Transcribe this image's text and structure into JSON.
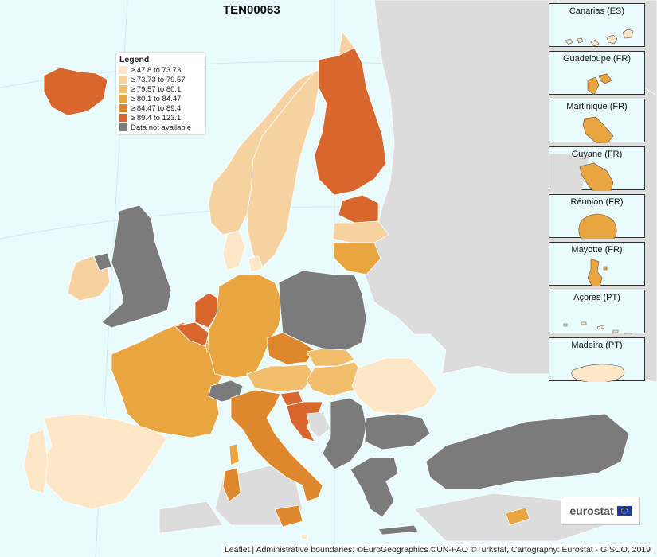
{
  "title": "TEN00063",
  "colors": {
    "sea": "#e9fbfd",
    "non_eu": "#dcdcdc",
    "no_data": "#7b7b7b",
    "c1": "#fde7c6",
    "c2": "#f5d29f",
    "c3": "#f1bf6c",
    "c4": "#e9a540",
    "c5": "#df872c",
    "c6": "#d9662c"
  },
  "legend": {
    "title": "Legend",
    "items": [
      {
        "label": "≥ 47.8 to 73.73",
        "color": "#fde7c6"
      },
      {
        "label": "≥ 73.73 to 79.57",
        "color": "#f5d29f"
      },
      {
        "label": "≥ 79.57 to 80.1",
        "color": "#f1bf6c"
      },
      {
        "label": "≥ 80.1 to 84.47",
        "color": "#e9a540"
      },
      {
        "label": "≥ 84.47 to 89.4",
        "color": "#df872c"
      },
      {
        "label": "≥ 89.4 to 123.1",
        "color": "#d9662c"
      },
      {
        "label": "Data not available",
        "color": "#7b7b7b"
      }
    ]
  },
  "insets": [
    {
      "label": "Canarias (ES)",
      "shape": "canarias",
      "color": "#fde7c6"
    },
    {
      "label": "Guadeloupe (FR)",
      "shape": "guadeloupe",
      "color": "#e9a540"
    },
    {
      "label": "Martinique (FR)",
      "shape": "martinique",
      "color": "#e9a540"
    },
    {
      "label": "Guyane (FR)",
      "shape": "guyane",
      "color": "#e9a540"
    },
    {
      "label": "Réunion (FR)",
      "shape": "reunion",
      "color": "#e9a540"
    },
    {
      "label": "Mayotte (FR)",
      "shape": "mayotte",
      "color": "#e9a540"
    },
    {
      "label": "Açores (PT)",
      "shape": "acores",
      "color": "#fde7c6"
    },
    {
      "label": "Madeira (PT)",
      "shape": "madeira",
      "color": "#fde7c6"
    }
  ],
  "logo": {
    "text": "eurostat"
  },
  "attribution": "Leaflet | Administrative boundaries: ©EuroGeographics ©UN-FAO ©Turkstat, Cartography: Eurostat - GISCO, 2019"
}
